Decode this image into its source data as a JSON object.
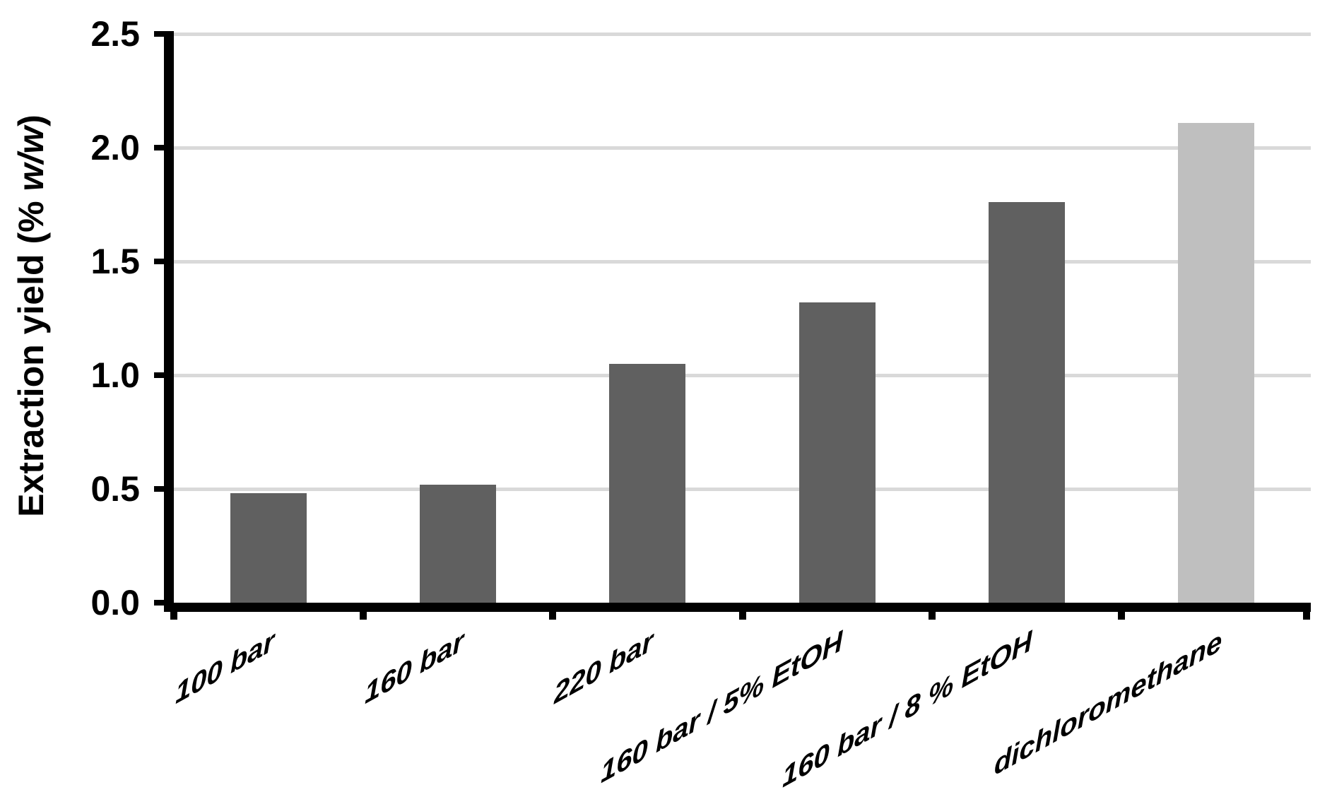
{
  "chart_data": {
    "type": "bar",
    "title": "",
    "categories": [
      "100 bar",
      "160 bar",
      "220 bar",
      "160 bar / 5% EtOH",
      "160 bar / 8 % EtOH",
      "dichloromethane"
    ],
    "values": [
      0.48,
      0.52,
      1.05,
      1.32,
      1.76,
      2.11
    ],
    "bar_colors": [
      "#606060",
      "#606060",
      "#606060",
      "#606060",
      "#606060",
      "#bfbfbf"
    ],
    "xlabel": "",
    "ylabel": "Extraction yield (% w/w)",
    "ylabel_parts": {
      "prefix": "Extraction yield (% ",
      "italic": "w/w",
      "suffix": ")"
    },
    "yticks": [
      0.0,
      0.5,
      1.0,
      1.5,
      2.0,
      2.5
    ],
    "ytick_labels": [
      "0.0",
      "0.5",
      "1.0",
      "1.5",
      "2.0",
      "2.5"
    ],
    "ylim": [
      0,
      2.5
    ],
    "grid": true,
    "gridline_color": "#d9d9d9",
    "axis_color": "#000000",
    "legend_position": "none"
  }
}
